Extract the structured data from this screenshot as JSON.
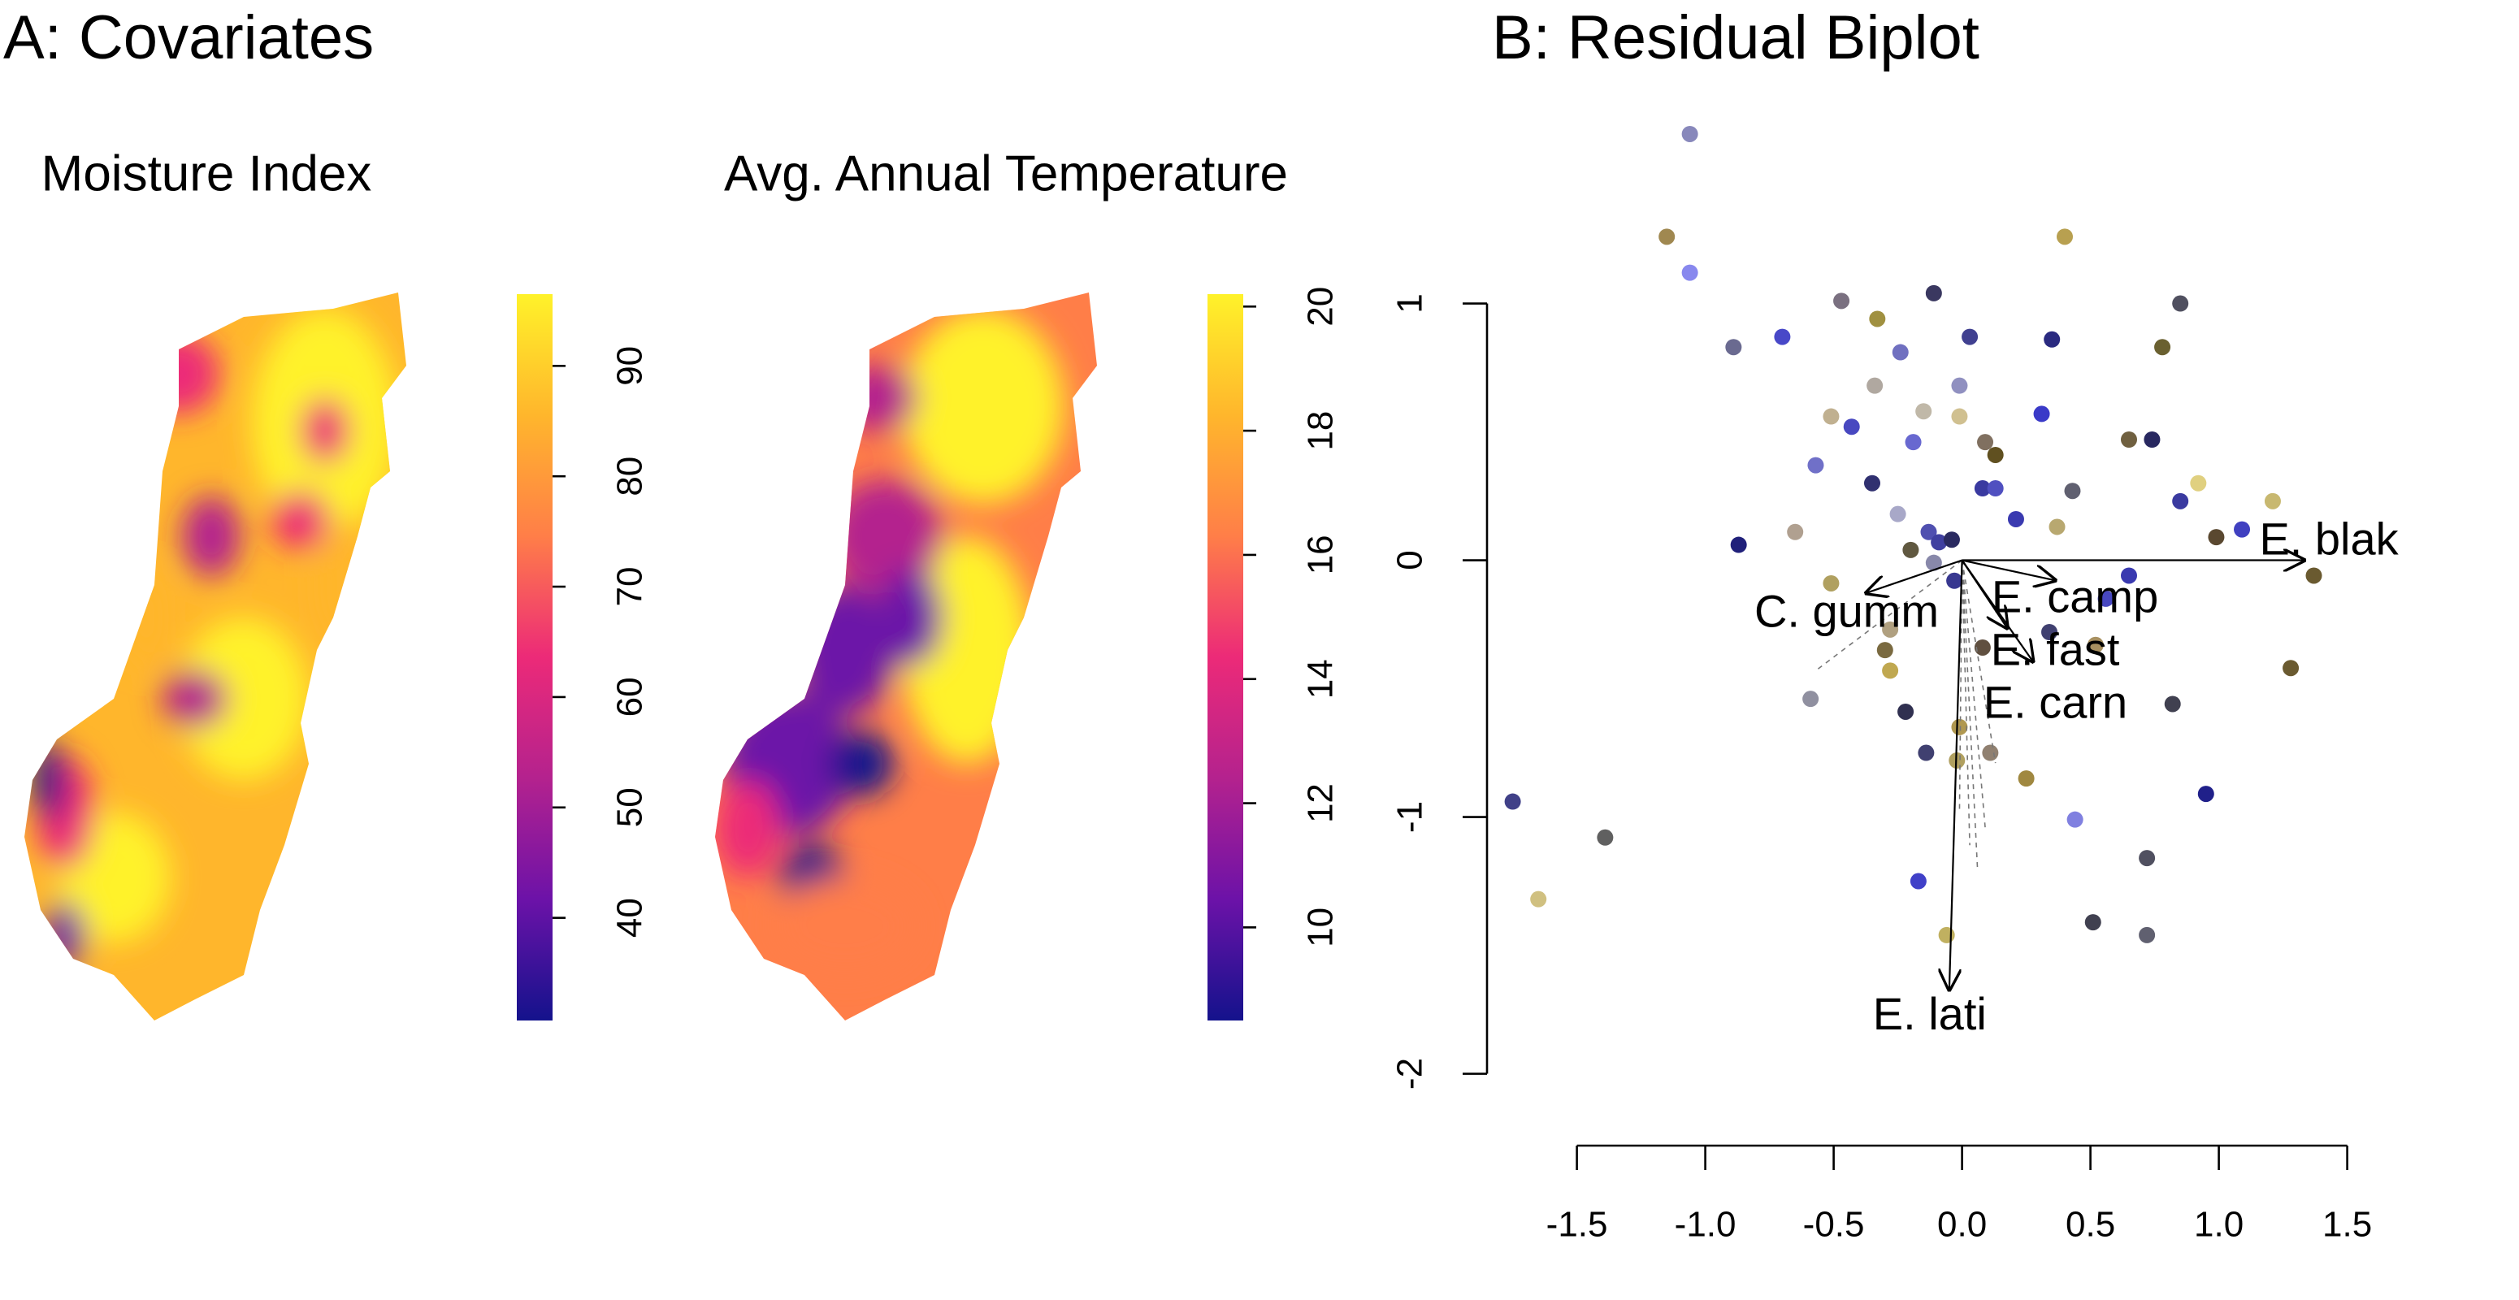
{
  "chart_data": [
    {
      "type": "raster-map",
      "panel_title": "A: Covariates",
      "title": "Moisture Index",
      "colorbar": {
        "lim": [
          30.7,
          96.5
        ],
        "ticks": [
          40,
          50,
          60,
          70,
          80,
          90
        ],
        "colors": [
          "#14128c",
          "#6c12a8",
          "#b4228e",
          "#ec2a78",
          "#ff7e48",
          "#ffb62c",
          "#fff22a"
        ]
      }
    },
    {
      "type": "raster-map",
      "title": "Avg. Annual Temperature",
      "colorbar": {
        "lim": [
          8.5,
          20.2
        ],
        "ticks": [
          10,
          12,
          14,
          16,
          18,
          20
        ],
        "colors": [
          "#14128c",
          "#6c12a8",
          "#b4228e",
          "#ec2a78",
          "#ff7e48",
          "#ffb62c",
          "#fff22a"
        ]
      }
    },
    {
      "type": "biplot",
      "title": "B: Residual Biplot",
      "xlim": [
        -1.85,
        1.65
      ],
      "ylim": [
        -2.28,
        1.72
      ],
      "xticks": [
        -1.5,
        {
          "value": -1,
          "label": "-1.0"
        },
        -0.5,
        {
          "value": 0,
          "label": "0.0"
        },
        0.5,
        {
          "value": 1,
          "label": "1.0"
        },
        1.5
      ],
      "yticks": [
        -2,
        -1,
        0,
        1
      ],
      "points": {
        "x": [
          -1.06,
          -1.15,
          -1.06,
          0.4,
          -0.47,
          -0.33,
          -0.11,
          0.85,
          -0.89,
          -0.7,
          -0.24,
          0.03,
          0.35,
          0.78,
          -0.34,
          -0.15,
          -0.01,
          -0.01,
          -0.51,
          -0.43,
          -0.19,
          0.31,
          0.09,
          0.13,
          0.65,
          0.74,
          -0.57,
          -0.35,
          0.08,
          0.13,
          0.43,
          0.92,
          1.21,
          -0.25,
          0.21,
          0.85,
          0.37,
          -0.65,
          -0.87,
          -0.13,
          -0.09,
          -0.2,
          -0.04,
          0.99,
          1.09,
          -0.11,
          -0.03,
          -0.51,
          0.65,
          1.37,
          0.56,
          0.34,
          -0.28,
          -0.3,
          -0.28,
          0.08,
          0.52,
          1.28,
          -0.59,
          -0.22,
          -0.01,
          0.82,
          -0.14,
          -0.02,
          0.11,
          0.25,
          0.95,
          -1.75,
          -1.39,
          0.44,
          0.72,
          -0.17,
          -1.65,
          0.51,
          0.72,
          -0.06
        ],
        "y": [
          1.66,
          1.26,
          1.12,
          1.26,
          1.01,
          0.94,
          1.04,
          1.0,
          0.83,
          0.87,
          0.81,
          0.87,
          0.86,
          0.83,
          0.68,
          0.58,
          0.68,
          0.56,
          0.56,
          0.52,
          0.46,
          0.57,
          0.46,
          0.41,
          0.47,
          0.47,
          0.37,
          0.3,
          0.28,
          0.28,
          0.27,
          0.3,
          0.23,
          0.18,
          0.16,
          0.23,
          0.13,
          0.11,
          0.06,
          0.11,
          0.07,
          0.04,
          0.08,
          0.09,
          0.12,
          -0.01,
          -0.08,
          -0.09,
          -0.06,
          -0.06,
          -0.15,
          -0.28,
          -0.27,
          -0.35,
          -0.43,
          -0.34,
          -0.33,
          -0.42,
          -0.54,
          -0.59,
          -0.65,
          -0.56,
          -0.75,
          -0.78,
          -0.75,
          -0.85,
          -0.91,
          -0.94,
          -1.08,
          -1.01,
          -1.16,
          -1.25,
          -1.32,
          -1.41,
          -1.46,
          -1.46
        ],
        "colors": [
          "#8888bb",
          "#a08850",
          "#8888ee",
          "#b8a050",
          "#7a7080",
          "#a09040",
          "#3a3860",
          "#505060",
          "#6a6a90",
          "#4848c8",
          "#7070c0",
          "#404090",
          "#2a2a80",
          "#6a6030",
          "#b0a8a0",
          "#c0b8a8",
          "#9090c0",
          "#d0c090",
          "#c0b090",
          "#4848c0",
          "#6868d0",
          "#3a3ac8",
          "#807060",
          "#605020",
          "#706040",
          "#282860",
          "#7070c8",
          "#303070",
          "#3a3aa0",
          "#5050c0",
          "#606070",
          "#e0d080",
          "#c8b870",
          "#a8a8c8",
          "#3a3ab0",
          "#3a3aa0",
          "#b8a870",
          "#b0a090",
          "#20207a",
          "#5050b0",
          "#4040a0",
          "#605840",
          "#2a2a60",
          "#5a4830",
          "#4040c0",
          "#8888aa",
          "#383890",
          "#b0a060",
          "#3a3ab0",
          "#6a5a30",
          "#4848c0",
          "#404070",
          "#b0a080",
          "#7a6a40",
          "#c0a850",
          "#605040",
          "#a89060",
          "#6a5a30",
          "#9090a0",
          "#303050",
          "#b09850",
          "#404050",
          "#404070",
          "#b0a060",
          "#908070",
          "#a08840",
          "#20208a",
          "#404088",
          "#606060",
          "#8080e0",
          "#505060",
          "#4040c8",
          "#d0c080",
          "#404050",
          "#606070",
          "#c0b060"
        ]
      },
      "minor_arrows": {
        "x": [
          -0.57,
          0.06,
          0.03,
          0.09,
          -0.01,
          0.13
        ],
        "y": [
          -0.43,
          -1.2,
          -1.11,
          -1.04,
          -0.98,
          -0.79
        ]
      },
      "arrows": [
        {
          "name": "E. blak",
          "x": 1.34,
          "y": 0.0
        },
        {
          "name": "C. gumm",
          "x": -0.38,
          "y": -0.13
        },
        {
          "name": "E. camp",
          "x": 0.37,
          "y": -0.08
        },
        {
          "name": "E. fast",
          "x": 0.28,
          "y": -0.4
        },
        {
          "name": "E. carn",
          "x": 0.18,
          "y": -0.27
        },
        {
          "name": "E. lati",
          "x": -0.05,
          "y": -1.68
        }
      ]
    }
  ]
}
